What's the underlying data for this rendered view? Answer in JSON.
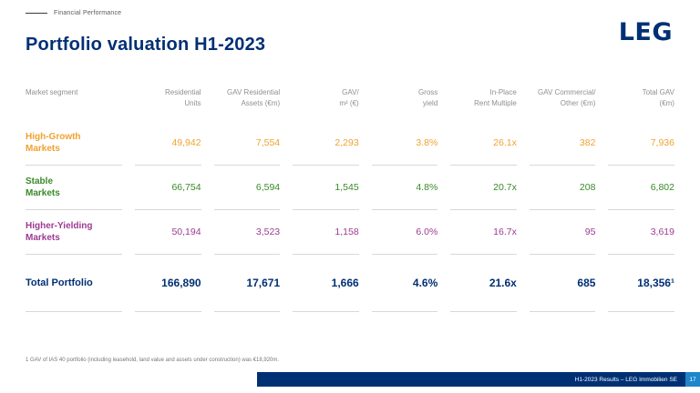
{
  "slide": {
    "kicker": "Financial Performance",
    "title": "Portfolio valuation H1-2023",
    "logo": "LEG"
  },
  "colors": {
    "navy": "#003074",
    "orange": "#f0a22e",
    "green": "#398a28",
    "purple": "#9d3b92",
    "line_gray": "#d8d8d8",
    "header_gray": "#8f8f8f",
    "page_blue": "#1f86c9"
  },
  "table": {
    "columns": [
      {
        "l1": "Market segment",
        "l2": ""
      },
      {
        "l1": "Residential",
        "l2": "Units"
      },
      {
        "l1": "GAV Residential",
        "l2": "Assets (€m)"
      },
      {
        "l1": "GAV/",
        "l2": "m² (€)"
      },
      {
        "l1": "Gross",
        "l2": "yield"
      },
      {
        "l1": "In-Place",
        "l2": "Rent Multiple"
      },
      {
        "l1": "GAV Commercial/",
        "l2": "Other (€m)"
      },
      {
        "l1": "Total GAV",
        "l2": "(€m)"
      }
    ],
    "rows": [
      {
        "label1": "High-Growth",
        "label2": "Markets",
        "values": [
          "49,942",
          "7,554",
          "2,293",
          "3.8%",
          "26.1x",
          "382",
          "7,936"
        ]
      },
      {
        "label1": "Stable",
        "label2": "Markets",
        "values": [
          "66,754",
          "6,594",
          "1,545",
          "4.8%",
          "20.7x",
          "208",
          "6,802"
        ]
      },
      {
        "label1": "Higher-Yielding",
        "label2": "Markets",
        "values": [
          "50,194",
          "3,523",
          "1,158",
          "6.0%",
          "16.7x",
          "95",
          "3,619"
        ]
      },
      {
        "label1": "Total Portfolio",
        "label2": "",
        "values": [
          "166,890",
          "17,671",
          "1,666",
          "4.6%",
          "21.6x",
          "685",
          "18,356¹"
        ]
      }
    ]
  },
  "footnote": "1 GAV of IAS 40 portfolio (including leasehold, land value and assets under construction) was €18,920m.",
  "footer": {
    "text": "H1-2023 Results – LEG Immobilien SE",
    "page": "17"
  }
}
